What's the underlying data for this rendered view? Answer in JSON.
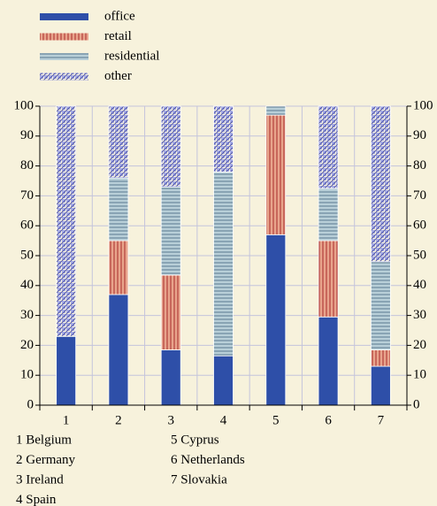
{
  "chart_data": {
    "type": "stacked_bar",
    "categories": [
      "1",
      "2",
      "3",
      "4",
      "5",
      "6",
      "7"
    ],
    "series": [
      {
        "name": "office",
        "color": "#2e4fa8",
        "pattern": "solid",
        "stripe_color": "#2e4fa8",
        "values": [
          23,
          37,
          18.5,
          16.5,
          57,
          29.5,
          13
        ]
      },
      {
        "name": "retail",
        "color": "#e8a48c",
        "pattern": "vertical",
        "stripe_color": "#a82a2a",
        "values": [
          0,
          18,
          25,
          0,
          40,
          25.5,
          5.5
        ]
      },
      {
        "name": "residential",
        "color": "#b8cfd8",
        "pattern": "horizontal",
        "stripe_color": "#5a7890",
        "values": [
          0,
          21,
          29.5,
          61.5,
          3,
          17.5,
          29.5
        ]
      },
      {
        "name": "other",
        "color": "#a8aee8",
        "pattern": "diagonal",
        "stripe_color": "#4a4ea0",
        "values": [
          77,
          24,
          27,
          22,
          0,
          27.5,
          52
        ]
      }
    ],
    "ylim": [
      0,
      100
    ],
    "yticks": [
      0,
      10,
      20,
      30,
      40,
      50,
      60,
      70,
      80,
      90,
      100
    ],
    "grid": true,
    "grid_color": "#c4c4dc",
    "right_axis": true,
    "footnotes": [
      "1 Belgium",
      "2 Germany",
      "3 Ireland",
      "4 Spain",
      "5 Cyprus",
      "6 Netherlands",
      "7 Slovakia"
    ]
  }
}
